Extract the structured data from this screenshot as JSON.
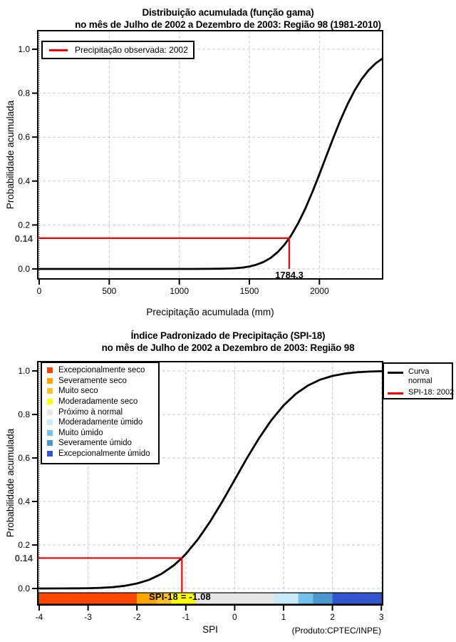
{
  "colors": {
    "curve": "#000000",
    "observed_line": "#ff0000",
    "grid": "#c9c9c9",
    "first_grid": "#000000",
    "highlight_label": "#3f3f3f"
  },
  "chart_data": [
    {
      "type": "line",
      "title": "Distribuição acumulada (função gama)",
      "subtitle": "no mês de Julho de 2002 a Dezembro de 2003: Região 98 (1981-2010)",
      "xlabel": "Precipitação acumulada (mm)",
      "ylabel": "Probabilidade acumulada",
      "x_range": [
        0,
        2452
      ],
      "y_range": [
        0,
        1
      ],
      "grid": true,
      "x_tick_values": [
        0,
        500,
        1000,
        1500,
        2000
      ],
      "x_tick_labels": [
        "0",
        "500",
        "1000",
        "1500",
        "2000"
      ],
      "y_tick_values": [
        0,
        0.2,
        0.4,
        0.6,
        0.8,
        1.0
      ],
      "y_tick_labels": [
        "0.0",
        "0.2",
        "0.4",
        "0.6",
        "0.8",
        "1.0"
      ],
      "legend": [
        {
          "label": "Precipitação observada: 2002",
          "color": "#ff0000"
        }
      ],
      "highlight": {
        "prob": 0.14,
        "prob_label": "0.14",
        "x_value": 1784.3,
        "x_label": "1784.3",
        "color": "#ff0000"
      },
      "series": [
        {
          "name": "Distribuição acumulada (função gama)",
          "color": "#000000",
          "points": [
            [
              0,
              0
            ],
            [
              300,
              0
            ],
            [
              600,
              0
            ],
            [
              800,
              0
            ],
            [
              900,
              0
            ],
            [
              1000,
              0
            ],
            [
              1100,
              0
            ],
            [
              1200,
              0.0002
            ],
            [
              1300,
              0.0009
            ],
            [
              1350,
              0.0018
            ],
            [
              1400,
              0.0034
            ],
            [
              1450,
              0.0063
            ],
            [
              1500,
              0.0112
            ],
            [
              1550,
              0.0191
            ],
            [
              1600,
              0.0314
            ],
            [
              1650,
              0.0495
            ],
            [
              1700,
              0.0749
            ],
            [
              1750,
              0.11
            ],
            [
              1784.3,
              0.14
            ],
            [
              1800,
              0.1546
            ],
            [
              1850,
              0.2101
            ],
            [
              1900,
              0.2759
            ],
            [
              1950,
              0.3505
            ],
            [
              2000,
              0.4313
            ],
            [
              2050,
              0.5152
            ],
            [
              2100,
              0.5983
            ],
            [
              2150,
              0.6772
            ],
            [
              2200,
              0.7489
            ],
            [
              2250,
              0.8111
            ],
            [
              2300,
              0.8628
            ],
            [
              2350,
              0.9039
            ],
            [
              2400,
              0.9351
            ],
            [
              2450,
              0.9578
            ]
          ]
        }
      ]
    },
    {
      "type": "line",
      "title": "Índice Padronizado de Precipitação (SPI-18)",
      "subtitle": "no mês de Julho de 2002 a Dezembro de 2003: Região 98",
      "xlabel": "SPI",
      "ylabel": "Probabilidade acumulada",
      "producer": "(Produto:CPTEC/INPE)",
      "x_range": [
        -4,
        3
      ],
      "y_range": [
        0,
        1
      ],
      "grid": true,
      "x_tick_values": [
        -4,
        -3,
        -2,
        -1,
        0,
        1,
        2,
        3
      ],
      "x_tick_labels": [
        "-4",
        "-3",
        "-2",
        "-1",
        "0",
        "1",
        "2",
        "3"
      ],
      "y_tick_values": [
        0,
        0.2,
        0.4,
        0.6,
        0.8,
        1.0
      ],
      "y_tick_labels": [
        "0.0",
        "0.2",
        "0.4",
        "0.6",
        "0.8",
        "1.0"
      ],
      "categories": [
        {
          "label": "Excepcionalmente seco",
          "color": "#ff4500"
        },
        {
          "label": "Severamente seco",
          "color": "#ffa500"
        },
        {
          "label": "Muito seco",
          "color": "#ffc125"
        },
        {
          "label": "Moderadamente seco",
          "color": "#ffff00"
        },
        {
          "label": "Próximo à normal",
          "color": "#e6e6e6"
        },
        {
          "label": "Moderadamente úmido",
          "color": "#c9eaf8"
        },
        {
          "label": "Muito úmido",
          "color": "#74c0ec"
        },
        {
          "label": "Severamente úmido",
          "color": "#4c96ce"
        },
        {
          "label": "Excepcionalmente úmido",
          "color": "#3355cd"
        }
      ],
      "spi_bar": {
        "segments": [
          {
            "from": -4,
            "to": -2,
            "color": "#ff4500"
          },
          {
            "from": -2,
            "to": -1.6,
            "color": "#ffa500"
          },
          {
            "from": -1.6,
            "to": -1.3,
            "color": "#ffc125"
          },
          {
            "from": -1.3,
            "to": -0.8,
            "color": "#ffff00"
          },
          {
            "from": -0.8,
            "to": 0.8,
            "color": "#e6e6e6"
          },
          {
            "from": 0.8,
            "to": 1.3,
            "color": "#c9eaf8"
          },
          {
            "from": 1.3,
            "to": 1.6,
            "color": "#74c0ec"
          },
          {
            "from": 1.6,
            "to": 2,
            "color": "#4c96ce"
          },
          {
            "from": 2,
            "to": 3,
            "color": "#3355cd"
          }
        ]
      },
      "legend_right": {
        "curve_line1": "Curva",
        "curve_line2": "normal",
        "curve_color": "#000000",
        "spi_label": "SPI-18: 2002",
        "spi_color": "#ff0000"
      },
      "highlight": {
        "prob": 0.14,
        "prob_label": "0.14",
        "spi": -1.08,
        "annotation": "SPI-18 = -1.08",
        "color": "#ff0000"
      },
      "series": [
        {
          "name": "Curva normal",
          "color": "#000000",
          "points": [
            [
              -4,
              0.0001
            ],
            [
              -3.5,
              0.0002
            ],
            [
              -3.25,
              0.0006
            ],
            [
              -3,
              0.0013
            ],
            [
              -2.75,
              0.003
            ],
            [
              -2.5,
              0.0062
            ],
            [
              -2.25,
              0.0122
            ],
            [
              -2,
              0.0228
            ],
            [
              -1.75,
              0.0401
            ],
            [
              -1.5,
              0.0668
            ],
            [
              -1.25,
              0.1056
            ],
            [
              -1.08,
              0.14
            ],
            [
              -1,
              0.1587
            ],
            [
              -0.75,
              0.2266
            ],
            [
              -0.5,
              0.3085
            ],
            [
              -0.25,
              0.4013
            ],
            [
              0,
              0.5
            ],
            [
              0.25,
              0.5987
            ],
            [
              0.5,
              0.6915
            ],
            [
              0.75,
              0.7734
            ],
            [
              1,
              0.8413
            ],
            [
              1.25,
              0.8944
            ],
            [
              1.5,
              0.9332
            ],
            [
              1.75,
              0.9599
            ],
            [
              2,
              0.9772
            ],
            [
              2.25,
              0.9878
            ],
            [
              2.5,
              0.9938
            ],
            [
              2.75,
              0.997
            ],
            [
              3,
              0.9987
            ]
          ]
        }
      ]
    }
  ]
}
